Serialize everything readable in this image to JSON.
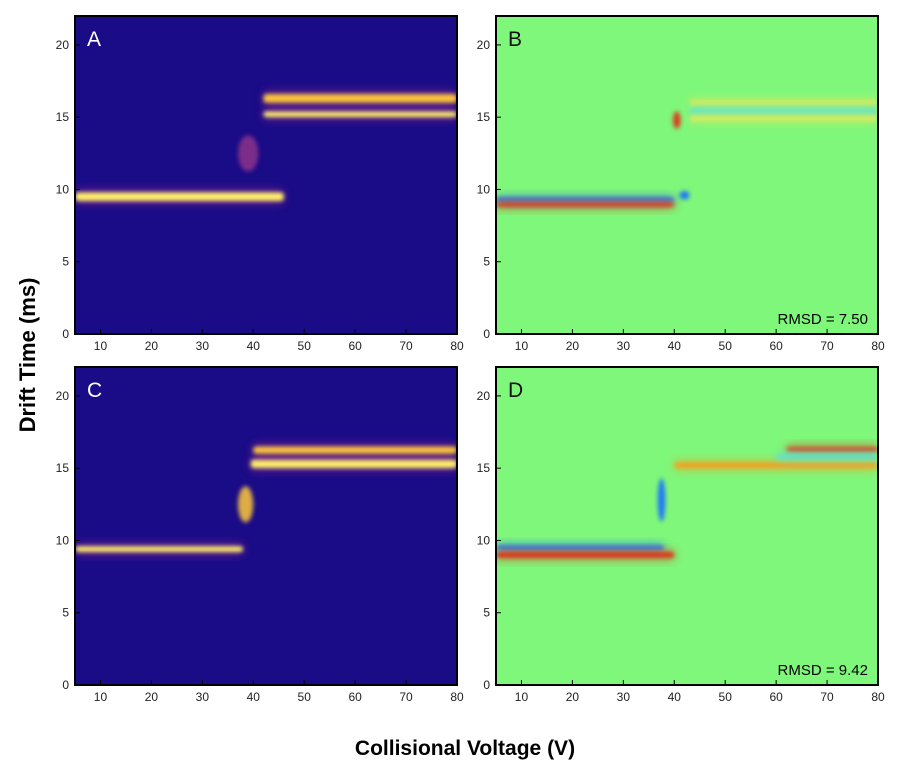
{
  "figure": {
    "ylabel": "Drift Time (ms)",
    "xlabel": "Collisional Voltage (V)"
  },
  "chart_data": [
    {
      "type": "heatmap",
      "panel_label": "A",
      "colormap": "plasma",
      "xlim": [
        5,
        80
      ],
      "ylim": [
        0,
        22
      ],
      "xticks": [
        10,
        20,
        30,
        40,
        50,
        60,
        70,
        80
      ],
      "yticks": [
        0,
        5,
        10,
        15,
        20
      ],
      "features": [
        {
          "kind": "band",
          "x_start": 5,
          "x_end": 46,
          "y_start": 9.2,
          "y_end": 9.8,
          "intensity": 1.0
        },
        {
          "kind": "blob",
          "x_center": 39,
          "y_center": 12.5,
          "x_width": 4,
          "y_height": 2.5,
          "intensity": 0.35
        },
        {
          "kind": "band",
          "x_start": 42,
          "x_end": 80,
          "y_start": 15.0,
          "y_end": 15.4,
          "intensity": 0.95
        },
        {
          "kind": "band",
          "x_start": 42,
          "x_end": 80,
          "y_start": 16.0,
          "y_end": 16.6,
          "intensity": 0.8
        }
      ]
    },
    {
      "type": "heatmap",
      "panel_label": "B",
      "colormap": "jet-difference",
      "xlim": [
        5,
        80
      ],
      "ylim": [
        0,
        22
      ],
      "xticks": [
        10,
        20,
        30,
        40,
        50,
        60,
        70,
        80
      ],
      "yticks": [
        0,
        5,
        10,
        15,
        20
      ],
      "annotation": "RMSD = 7.50",
      "features": [
        {
          "kind": "band",
          "x_start": 5,
          "x_end": 40,
          "y_start": 9.3,
          "y_end": 9.3,
          "sign": "neg",
          "intensity": 0.9
        },
        {
          "kind": "band",
          "x_start": 5,
          "x_end": 40,
          "y_start": 8.85,
          "y_end": 9.05,
          "sign": "pos",
          "intensity": 0.9
        },
        {
          "kind": "blob",
          "x_center": 42,
          "y_center": 9.6,
          "x_width": 2,
          "y_height": 0.6,
          "sign": "neg",
          "intensity": 1.0
        },
        {
          "kind": "blob",
          "x_center": 40.5,
          "y_center": 14.8,
          "x_width": 1.5,
          "y_height": 1.2,
          "sign": "pos",
          "intensity": 1.0
        },
        {
          "kind": "band",
          "x_start": 43,
          "x_end": 80,
          "y_start": 16.0,
          "y_end": 16.0,
          "sign": "pos",
          "intensity": 0.5
        },
        {
          "kind": "band",
          "x_start": 43,
          "x_end": 80,
          "y_start": 15.4,
          "y_end": 15.4,
          "sign": "neg",
          "intensity": 0.4
        },
        {
          "kind": "band",
          "x_start": 43,
          "x_end": 80,
          "y_start": 14.9,
          "y_end": 14.9,
          "sign": "pos",
          "intensity": 0.4
        }
      ]
    },
    {
      "type": "heatmap",
      "panel_label": "C",
      "colormap": "plasma",
      "xlim": [
        5,
        80
      ],
      "ylim": [
        0,
        22
      ],
      "xticks": [
        10,
        20,
        30,
        40,
        50,
        60,
        70,
        80
      ],
      "yticks": [
        0,
        5,
        10,
        15,
        20
      ],
      "features": [
        {
          "kind": "band",
          "x_start": 5,
          "x_end": 38,
          "y_start": 9.2,
          "y_end": 9.6,
          "intensity": 1.0
        },
        {
          "kind": "blob",
          "x_center": 38.5,
          "y_center": 12.5,
          "x_width": 3,
          "y_height": 2.5,
          "intensity": 0.8
        },
        {
          "kind": "band",
          "x_start": 39.5,
          "x_end": 80,
          "y_start": 15.0,
          "y_end": 15.6,
          "intensity": 0.95
        },
        {
          "kind": "band",
          "x_start": 40,
          "x_end": 80,
          "y_start": 16.0,
          "y_end": 16.5,
          "intensity": 0.7
        }
      ]
    },
    {
      "type": "heatmap",
      "panel_label": "D",
      "colormap": "jet-difference",
      "xlim": [
        5,
        80
      ],
      "ylim": [
        0,
        22
      ],
      "xticks": [
        10,
        20,
        30,
        40,
        50,
        60,
        70,
        80
      ],
      "yticks": [
        0,
        5,
        10,
        15,
        20
      ],
      "annotation": "RMSD = 9.42",
      "features": [
        {
          "kind": "band",
          "x_start": 5,
          "x_end": 38,
          "y_start": 9.4,
          "y_end": 9.6,
          "sign": "neg",
          "intensity": 0.9
        },
        {
          "kind": "band",
          "x_start": 5,
          "x_end": 40,
          "y_start": 8.8,
          "y_end": 9.2,
          "sign": "pos",
          "intensity": 0.9
        },
        {
          "kind": "blob",
          "x_center": 37.5,
          "y_center": 12.8,
          "x_width": 1.5,
          "y_height": 3,
          "sign": "neg",
          "intensity": 0.9
        },
        {
          "kind": "band",
          "x_start": 40,
          "x_end": 80,
          "y_start": 15.0,
          "y_end": 15.4,
          "sign": "pos",
          "intensity": 0.7
        },
        {
          "kind": "band",
          "x_start": 62,
          "x_end": 80,
          "y_start": 16.3,
          "y_end": 16.3,
          "sign": "pos",
          "intensity": 0.9
        },
        {
          "kind": "band",
          "x_start": 60,
          "x_end": 80,
          "y_start": 15.8,
          "y_end": 15.8,
          "sign": "neg",
          "intensity": 0.3
        }
      ]
    }
  ]
}
